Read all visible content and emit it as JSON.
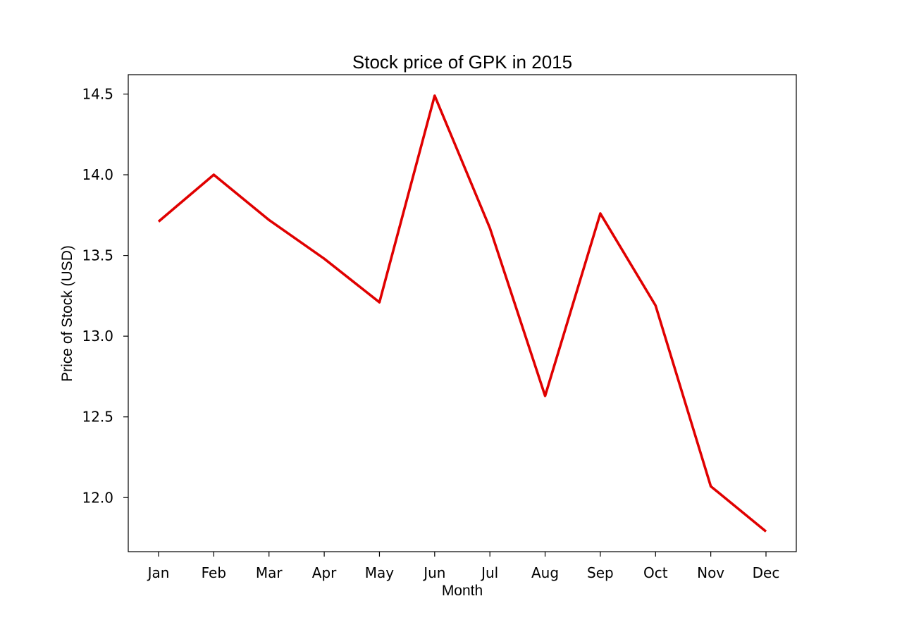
{
  "chart_data": {
    "type": "line",
    "title": "Stock price of GPK in 2015",
    "xlabel": "Month",
    "ylabel": "Price of Stock (USD)",
    "categories": [
      "Jan",
      "Feb",
      "Mar",
      "Apr",
      "May",
      "Jun",
      "Jul",
      "Aug",
      "Sep",
      "Oct",
      "Nov",
      "Dec"
    ],
    "series": [
      {
        "values": [
          13.71,
          14.0,
          13.72,
          13.48,
          13.21,
          14.49,
          13.67,
          12.63,
          13.76,
          13.19,
          12.07,
          11.79
        ],
        "color": "#e00000"
      }
    ],
    "yticks": [
      12.0,
      12.5,
      13.0,
      13.5,
      14.0,
      14.5
    ],
    "ytick_labels": [
      "12.0",
      "12.5",
      "13.0",
      "13.5",
      "14.0",
      "14.5"
    ],
    "ylim": [
      11.665,
      14.62
    ],
    "grid": false,
    "legend": "none"
  }
}
